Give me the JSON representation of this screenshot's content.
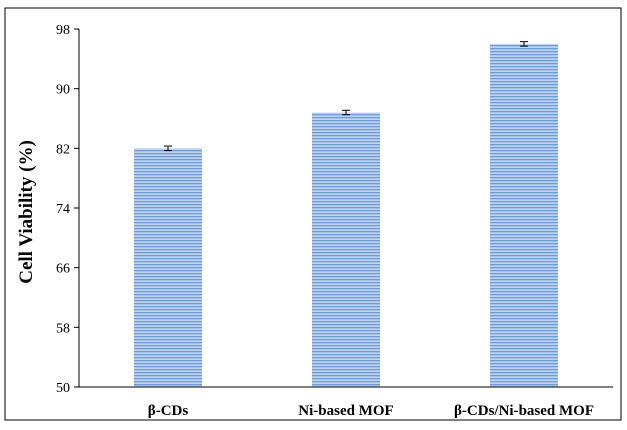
{
  "chart_data": {
    "type": "bar",
    "title": "",
    "xlabel": "",
    "ylabel": "Cell Viability  (%)",
    "ylim": [
      50,
      98
    ],
    "yticks": [
      "50",
      "58",
      "66",
      "74",
      "82",
      "90",
      "98"
    ],
    "grid": false,
    "legend": "none",
    "categories": [
      "β-CDs",
      "Ni-based MOF",
      "β-CDs/Ni-based MOF"
    ],
    "series": [
      {
        "values": [
          82.0,
          86.8,
          96.0
        ],
        "errors": [
          0.3,
          0.3,
          0.3
        ]
      }
    ],
    "colors": {
      "bar_fill": "#bcd3f2",
      "bar_stripe": "#6f9bd6",
      "axis": "#000000",
      "error_bar": "#000000"
    }
  }
}
